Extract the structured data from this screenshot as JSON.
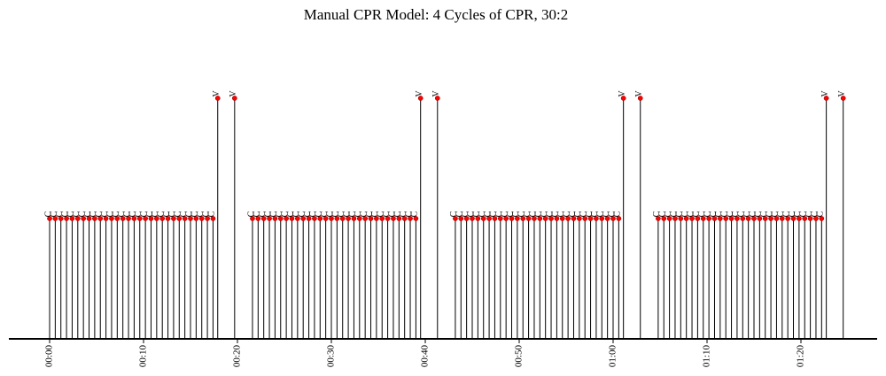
{
  "chart_data": {
    "type": "timeline",
    "title": "Manual CPR Model: 4 Cycles of CPR, 30:2",
    "x_unit": "seconds",
    "xlim": [
      0,
      88
    ],
    "ticks": [
      {
        "t": 0,
        "label": "00:00"
      },
      {
        "t": 10,
        "label": "00:10"
      },
      {
        "t": 20,
        "label": "00:20"
      },
      {
        "t": 30,
        "label": "00:30"
      },
      {
        "t": 40,
        "label": "00:40"
      },
      {
        "t": 50,
        "label": "00:50"
      },
      {
        "t": 60,
        "label": "01:00"
      },
      {
        "t": 70,
        "label": "01:10"
      },
      {
        "t": 80,
        "label": "01:20"
      }
    ],
    "event_types": [
      {
        "code": "C",
        "count_per_cycle": 30,
        "height": 1.0,
        "color": "#ff0000"
      },
      {
        "code": "V",
        "count_per_cycle": 2,
        "height": 2.0,
        "color": "#ff0000"
      }
    ],
    "cycles": [
      {
        "compressions_start": 0.0,
        "compressions_end": 17.4,
        "ventilations": [
          17.9,
          19.7
        ]
      },
      {
        "compressions_start": 21.6,
        "compressions_end": 39.0,
        "ventilations": [
          39.5,
          41.3
        ]
      },
      {
        "compressions_start": 43.2,
        "compressions_end": 60.6,
        "ventilations": [
          61.1,
          62.9
        ]
      },
      {
        "compressions_start": 64.8,
        "compressions_end": 82.2,
        "ventilations": [
          82.7,
          84.5
        ]
      }
    ]
  }
}
